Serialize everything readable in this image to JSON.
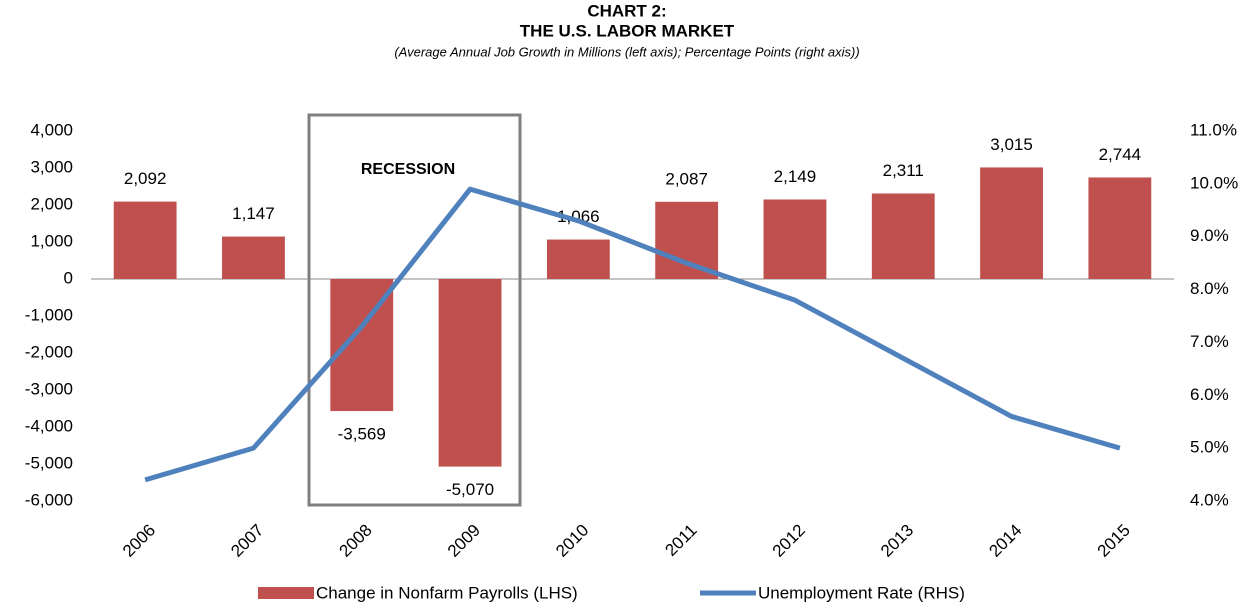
{
  "chart_data": {
    "type": "bar-line",
    "title": [
      "CHART 2:",
      "THE U.S. LABOR MARKET"
    ],
    "subtitle": "(Average Annual Job Growth in Millions (left axis); Percentage Points (right axis))",
    "annotation": "RECESSION",
    "categories": [
      "2006",
      "2007",
      "2008",
      "2009",
      "2010",
      "2011",
      "2012",
      "2013",
      "2014",
      "2015"
    ],
    "series": [
      {
        "name": "Change in Nonfarm Payrolls (LHS)",
        "type": "bar",
        "color": "#c0504d",
        "values": [
          2092,
          1147,
          -3569,
          -5070,
          1066,
          2087,
          2149,
          2311,
          3015,
          2744
        ],
        "value_labels": [
          "2,092",
          "1,147",
          "-3,569",
          "-5,070",
          "1,066",
          "2,087",
          "2,149",
          "2,311",
          "3,015",
          "2,744"
        ]
      },
      {
        "name": "Unemployment Rate (RHS)",
        "type": "line",
        "color": "#4f81bd",
        "axis": "y2",
        "values": [
          4.4,
          5.0,
          7.3,
          9.9,
          9.3,
          8.5,
          7.8,
          6.7,
          5.6,
          5.0
        ]
      }
    ],
    "ylim": [
      -6000,
      4000
    ],
    "yticks": [
      {
        "value": -6000,
        "label": "-6,000"
      },
      {
        "value": -5000,
        "label": "-5,000"
      },
      {
        "value": -4000,
        "label": "-4,000"
      },
      {
        "value": -3000,
        "label": "-3,000"
      },
      {
        "value": -2000,
        "label": "-2,000"
      },
      {
        "value": -1000,
        "label": "-1,000"
      },
      0,
      {
        "value": 1000,
        "label": "1,000"
      },
      {
        "value": 2000,
        "label": "2,000"
      },
      {
        "value": 3000,
        "label": "3,000"
      },
      {
        "value": 4000,
        "label": "4,000"
      }
    ],
    "y2lim": [
      4.0,
      11.0
    ],
    "y2ticks": [
      {
        "value": 4.0,
        "label": "4.0%"
      },
      {
        "value": 5.0,
        "label": "5.0%"
      },
      {
        "value": 6.0,
        "label": "6.0%"
      },
      {
        "value": 7.0,
        "label": "7.0%"
      },
      {
        "value": 8.0,
        "label": "8.0%"
      },
      {
        "value": 9.0,
        "label": "9.0%"
      },
      {
        "value": 10.0,
        "label": "10.0%"
      },
      {
        "value": 11.0,
        "label": "11.0%"
      }
    ],
    "grid": false
  }
}
